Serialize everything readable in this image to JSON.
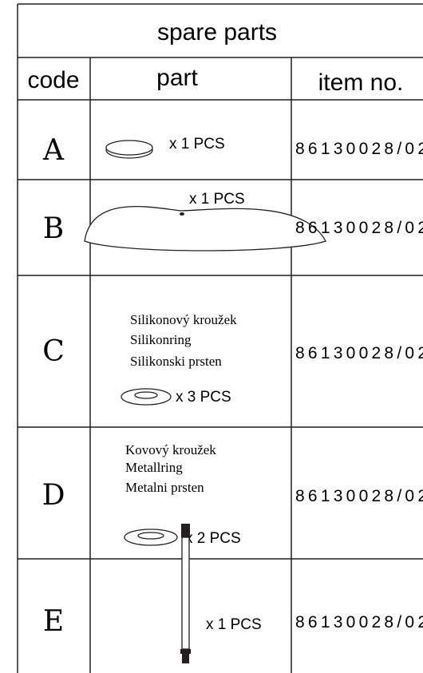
{
  "title": "spare parts",
  "columns": [
    "code",
    "part",
    "item no."
  ],
  "rows": [
    {
      "code": "A",
      "quantity": "x 1 PCS",
      "item_no": "86130028/02"
    },
    {
      "code": "B",
      "quantity": "x 1 PCS",
      "item_no": "86130028/02"
    },
    {
      "code": "C",
      "labels": [
        "Silikonový kroužek",
        "Silikonring",
        "Silikonski prsten"
      ],
      "quantity": "x 3 PCS",
      "item_no": "86130028/02"
    },
    {
      "code": "D",
      "labels": [
        "Kovový kroužek",
        "Metallring",
        "Metalni prsten"
      ],
      "quantity": "x 2 PCS",
      "item_no": "86130028/02"
    },
    {
      "code": "E",
      "quantity": "x 1 PCS",
      "item_no": "86130028/02"
    }
  ]
}
